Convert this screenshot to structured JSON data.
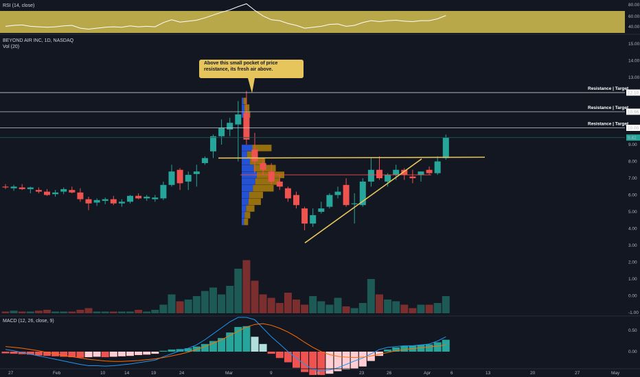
{
  "chart_data": {
    "type": "candlestick",
    "title": "BEYOND AIR INC, 1D, NASDAQ",
    "volume_label": "Vol (20)",
    "x_ticks": [
      "27",
      "Feb",
      "10",
      "14",
      "19",
      "24",
      "Mar",
      "9",
      "16",
      "23",
      "26",
      "Apr",
      "6",
      "13",
      "20",
      "27",
      "May"
    ],
    "price_axis": {
      "ticks": [
        "15.00",
        "14.00",
        "13.00",
        "12.00",
        "11.00",
        "10.00",
        "9.00",
        "8.00",
        "7.00",
        "6.00",
        "5.00",
        "4.00",
        "3.00",
        "2.00",
        "1.00",
        "0.00",
        "-1.00"
      ],
      "ylim": [
        -1,
        15.5
      ]
    },
    "candles": [
      {
        "o": 6.5,
        "h": 6.65,
        "l": 6.35,
        "c": 6.45
      },
      {
        "o": 6.4,
        "h": 6.6,
        "l": 6.25,
        "c": 6.5
      },
      {
        "o": 6.45,
        "h": 6.65,
        "l": 6.3,
        "c": 6.35
      },
      {
        "o": 6.35,
        "h": 6.5,
        "l": 6.1,
        "c": 6.45
      },
      {
        "o": 6.3,
        "h": 6.45,
        "l": 6.1,
        "c": 6.2
      },
      {
        "o": 6.2,
        "h": 6.35,
        "l": 5.95,
        "c": 6.0
      },
      {
        "o": 6.05,
        "h": 6.3,
        "l": 5.9,
        "c": 6.15
      },
      {
        "o": 6.2,
        "h": 6.45,
        "l": 6.05,
        "c": 6.35
      },
      {
        "o": 6.3,
        "h": 6.5,
        "l": 6.1,
        "c": 6.15
      },
      {
        "o": 6.15,
        "h": 6.4,
        "l": 5.6,
        "c": 5.75
      },
      {
        "o": 5.75,
        "h": 5.9,
        "l": 5.1,
        "c": 5.5
      },
      {
        "o": 5.55,
        "h": 5.8,
        "l": 5.35,
        "c": 5.7
      },
      {
        "o": 5.65,
        "h": 5.85,
        "l": 5.45,
        "c": 5.75
      },
      {
        "o": 5.75,
        "h": 5.95,
        "l": 5.4,
        "c": 5.5
      },
      {
        "o": 5.5,
        "h": 5.75,
        "l": 5.3,
        "c": 5.6
      },
      {
        "o": 5.6,
        "h": 6.0,
        "l": 5.5,
        "c": 5.95
      },
      {
        "o": 5.95,
        "h": 6.1,
        "l": 5.75,
        "c": 5.8
      },
      {
        "o": 5.8,
        "h": 6.0,
        "l": 5.65,
        "c": 5.9
      },
      {
        "o": 5.75,
        "h": 6.0,
        "l": 5.6,
        "c": 5.85
      },
      {
        "o": 5.8,
        "h": 6.8,
        "l": 5.7,
        "c": 6.6
      },
      {
        "o": 6.6,
        "h": 7.8,
        "l": 6.5,
        "c": 7.4
      },
      {
        "o": 7.5,
        "h": 7.6,
        "l": 6.3,
        "c": 6.7
      },
      {
        "o": 6.8,
        "h": 7.4,
        "l": 6.3,
        "c": 7.2
      },
      {
        "o": 7.25,
        "h": 7.8,
        "l": 6.5,
        "c": 7.4
      },
      {
        "o": 7.9,
        "h": 8.3,
        "l": 7.8,
        "c": 8.2
      },
      {
        "o": 8.6,
        "h": 9.6,
        "l": 8.2,
        "c": 9.5
      },
      {
        "o": 9.5,
        "h": 10.5,
        "l": 9.0,
        "c": 10.0
      },
      {
        "o": 9.9,
        "h": 10.6,
        "l": 9.5,
        "c": 10.3
      },
      {
        "o": 10.2,
        "h": 11.6,
        "l": 8.0,
        "c": 10.8
      },
      {
        "o": 10.9,
        "h": 12.2,
        "l": 9.0,
        "c": 9.3
      },
      {
        "o": 8.7,
        "h": 9.7,
        "l": 7.3,
        "c": 8.0
      },
      {
        "o": 7.9,
        "h": 8.2,
        "l": 7.2,
        "c": 7.5
      },
      {
        "o": 7.4,
        "h": 7.9,
        "l": 6.6,
        "c": 6.8
      },
      {
        "o": 6.8,
        "h": 7.2,
        "l": 6.3,
        "c": 6.5
      },
      {
        "o": 6.4,
        "h": 6.5,
        "l": 5.6,
        "c": 5.8
      },
      {
        "o": 6.0,
        "h": 6.2,
        "l": 5.2,
        "c": 5.4
      },
      {
        "o": 5.2,
        "h": 5.3,
        "l": 3.9,
        "c": 4.3
      },
      {
        "o": 4.3,
        "h": 5.2,
        "l": 4.1,
        "c": 4.8
      },
      {
        "o": 5.0,
        "h": 5.6,
        "l": 4.9,
        "c": 5.2
      },
      {
        "o": 5.3,
        "h": 6.1,
        "l": 5.2,
        "c": 6.0
      },
      {
        "o": 6.0,
        "h": 6.5,
        "l": 5.8,
        "c": 6.2
      },
      {
        "o": 6.6,
        "h": 7.0,
        "l": 5.3,
        "c": 5.4
      },
      {
        "o": 5.5,
        "h": 6.1,
        "l": 4.3,
        "c": 5.5
      },
      {
        "o": 5.4,
        "h": 7.0,
        "l": 5.3,
        "c": 6.8
      },
      {
        "o": 6.8,
        "h": 8.2,
        "l": 6.5,
        "c": 7.5
      },
      {
        "o": 7.5,
        "h": 8.3,
        "l": 6.9,
        "c": 7.0
      },
      {
        "o": 6.8,
        "h": 7.3,
        "l": 6.5,
        "c": 7.2
      },
      {
        "o": 7.2,
        "h": 7.8,
        "l": 6.9,
        "c": 7.5
      },
      {
        "o": 7.5,
        "h": 7.6,
        "l": 6.9,
        "c": 7.2
      },
      {
        "o": 7.1,
        "h": 7.5,
        "l": 6.7,
        "c": 7.0
      },
      {
        "o": 7.2,
        "h": 7.4,
        "l": 6.8,
        "c": 7.4
      },
      {
        "o": 7.5,
        "h": 7.7,
        "l": 7.2,
        "c": 7.3
      },
      {
        "o": 7.3,
        "h": 8.3,
        "l": 7.2,
        "c": 8.0
      },
      {
        "o": 8.2,
        "h": 9.6,
        "l": 8.1,
        "c": 9.42
      }
    ],
    "volume": [
      0.1,
      0.15,
      0.1,
      0.1,
      0.15,
      0.2,
      0.1,
      0.1,
      0.1,
      0.2,
      0.3,
      0.1,
      0.1,
      0.1,
      0.1,
      0.1,
      0.2,
      0.1,
      0.2,
      0.5,
      1.1,
      0.7,
      0.8,
      1.0,
      1.3,
      1.5,
      1.1,
      1.6,
      2.6,
      3.1,
      1.9,
      1.1,
      0.9,
      0.6,
      1.2,
      0.8,
      0.5,
      1.0,
      0.7,
      0.5,
      0.9,
      0.4,
      0.3,
      0.6,
      2.0,
      1.1,
      0.8,
      0.7,
      0.5,
      0.3,
      0.5,
      0.5,
      0.6,
      1.0
    ],
    "volume_profile": [
      {
        "price": 8.8,
        "length": 0.7
      },
      {
        "price": 8.4,
        "length": 0.35
      },
      {
        "price": 8.0,
        "length": 0.55
      },
      {
        "price": 7.6,
        "length": 0.8
      },
      {
        "price": 7.2,
        "length": 1.0
      },
      {
        "price": 6.8,
        "length": 0.9
      },
      {
        "price": 6.4,
        "length": 0.75
      },
      {
        "price": 6.0,
        "length": 0.5
      },
      {
        "price": 5.6,
        "length": 0.45
      },
      {
        "price": 5.2,
        "length": 0.3
      },
      {
        "price": 4.8,
        "length": 0.2
      },
      {
        "price": 4.4,
        "length": 0.15
      },
      {
        "price": 10.8,
        "length": 0.2
      },
      {
        "price": 11.2,
        "length": 0.18
      },
      {
        "price": 11.6,
        "length": 0.12
      }
    ],
    "resistance": [
      {
        "label": "Resistance | Target",
        "value": 12.1
      },
      {
        "label": "Resistance | Target",
        "value": 10.96
      },
      {
        "label": "Resistance | Target",
        "value": 10.0
      }
    ],
    "price_badges": [
      "12.10",
      "10.96",
      "10.00",
      "9.42"
    ],
    "annotation": "Above this small pocket of price resistance, its fresh air above.",
    "rsi": {
      "label": "RSI (14, close)",
      "ticks": [
        "80.00",
        "60.00",
        "40.00"
      ],
      "values": [
        44,
        46,
        47,
        44,
        43,
        42,
        43,
        45,
        46,
        40,
        38,
        40,
        42,
        43,
        42,
        45,
        43,
        44,
        43,
        52,
        58,
        53,
        55,
        57,
        62,
        68,
        74,
        79,
        86,
        92,
        78,
        66,
        58,
        56,
        50,
        46,
        40,
        42,
        44,
        48,
        49,
        44,
        46,
        52,
        56,
        54,
        56,
        57,
        55,
        54,
        56,
        56,
        60,
        67
      ]
    },
    "macd": {
      "label": "MACD (12, 26, close, 9)",
      "ticks": [
        "0.50",
        "0.00"
      ],
      "hist": [
        -0.04,
        -0.05,
        -0.06,
        -0.07,
        -0.09,
        -0.1,
        -0.11,
        -0.12,
        -0.13,
        -0.14,
        -0.13,
        -0.12,
        -0.13,
        -0.12,
        -0.11,
        -0.1,
        -0.08,
        -0.07,
        -0.05,
        0.02,
        0.05,
        0.06,
        0.08,
        0.12,
        0.18,
        0.25,
        0.32,
        0.45,
        0.58,
        0.6,
        0.35,
        0.18,
        -0.05,
        -0.15,
        -0.25,
        -0.38,
        -0.48,
        -0.55,
        -0.55,
        -0.52,
        -0.46,
        -0.42,
        -0.4,
        -0.35,
        -0.22,
        -0.1,
        0.05,
        0.1,
        0.13,
        0.14,
        0.16,
        0.17,
        0.22,
        0.28
      ],
      "macd_line": [
        0.05,
        0.02,
        -0.02,
        -0.06,
        -0.1,
        -0.14,
        -0.18,
        -0.22,
        -0.26,
        -0.3,
        -0.33,
        -0.33,
        -0.34,
        -0.33,
        -0.31,
        -0.29,
        -0.26,
        -0.23,
        -0.2,
        -0.12,
        -0.05,
        0.02,
        0.08,
        0.16,
        0.28,
        0.42,
        0.56,
        0.7,
        0.85,
        0.9,
        0.75,
        0.55,
        0.35,
        0.18,
        0.0,
        -0.15,
        -0.3,
        -0.42,
        -0.45,
        -0.43,
        -0.38,
        -0.3,
        -0.22,
        -0.15,
        -0.05,
        0.05,
        0.1,
        0.12,
        0.14,
        0.14,
        0.16,
        0.18,
        0.25,
        0.35
      ],
      "signal_line": [
        0.12,
        0.1,
        0.08,
        0.05,
        0.02,
        -0.02,
        -0.05,
        -0.09,
        -0.12,
        -0.15,
        -0.18,
        -0.2,
        -0.22,
        -0.23,
        -0.23,
        -0.22,
        -0.21,
        -0.19,
        -0.17,
        -0.14,
        -0.1,
        -0.06,
        -0.01,
        0.05,
        0.12,
        0.2,
        0.28,
        0.38,
        0.48,
        0.58,
        0.64,
        0.66,
        0.62,
        0.55,
        0.46,
        0.35,
        0.22,
        0.1,
        0.0,
        -0.07,
        -0.11,
        -0.13,
        -0.14,
        -0.13,
        -0.1,
        -0.06,
        -0.02,
        0.02,
        0.05,
        0.07,
        0.09,
        0.11,
        0.13,
        0.16
      ]
    }
  },
  "colors": {
    "up": "#26a69a",
    "down": "#ef5350",
    "vol_up": "#1e5a55",
    "vol_down": "#7a2e2e",
    "profile_up": "#2962ff",
    "profile_down": "#b8860b",
    "trend": "#e6c65c",
    "rsi_bg": "#b9a84a",
    "macd_line": "#2196f3",
    "signal": "#ff6d00",
    "bg": "#131722"
  }
}
